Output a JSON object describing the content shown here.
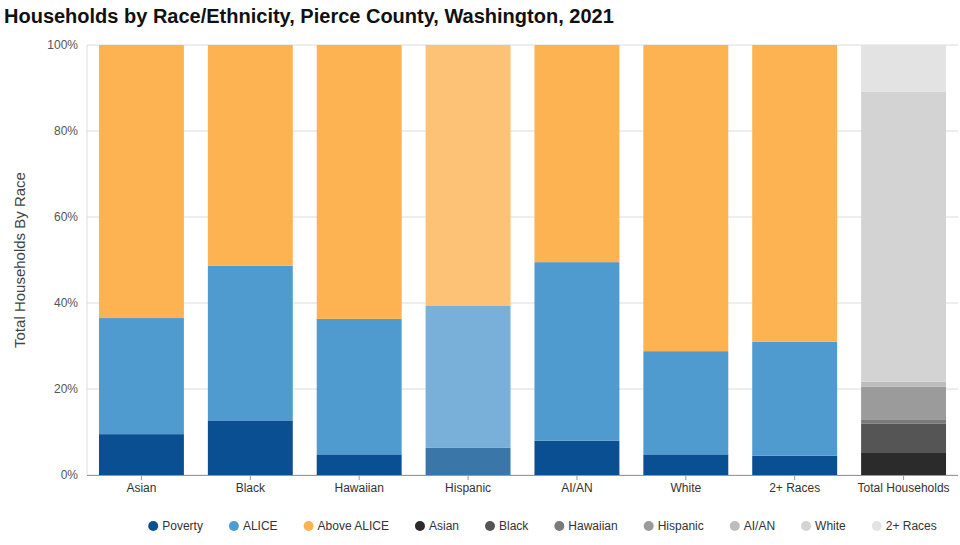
{
  "chart_data": {
    "type": "bar",
    "stacked": true,
    "title": "Households by Race/Ethnicity, Pierce County, Washington, 2021",
    "y_label": "Total Households By Race",
    "categories": [
      "Asian",
      "Black",
      "Hawaiian",
      "Hispanic",
      "AI/AN",
      "White",
      "2+ Races",
      "Total Households"
    ],
    "ylim": [
      0,
      100
    ],
    "yticks": [
      {
        "value": 0,
        "label": "0%"
      },
      {
        "value": 20,
        "label": "20%"
      },
      {
        "value": 40,
        "label": "40%"
      },
      {
        "value": 60,
        "label": "60%"
      },
      {
        "value": 80,
        "label": "80%"
      },
      {
        "value": 100,
        "label": "100%"
      }
    ],
    "grid": true,
    "legend": "bottom",
    "series": [
      {
        "name": "Poverty",
        "color": "#0a4f92",
        "colors": [
          "#0a4f92",
          "#0a4f92",
          "#0a4f92",
          "#3a76a8",
          "#0a4f92",
          "#0a4f92",
          "#0a4f92",
          "#0a4f92"
        ],
        "values": [
          9.5,
          12.7,
          4.8,
          6.3,
          8,
          4.8,
          4.5,
          null
        ]
      },
      {
        "name": "ALICE",
        "color": "#4f9bd0",
        "colors": [
          "#4f9bd0",
          "#4f9bd0",
          "#4f9bd0",
          "#79b0da",
          "#4f9bd0",
          "#4f9bd0",
          "#4f9bd0",
          "#4f9bd0"
        ],
        "values": [
          27,
          36,
          31.5,
          33,
          41.5,
          24,
          26.5,
          null
        ]
      },
      {
        "name": "Above ALICE",
        "color": "#fdb351",
        "colors": [
          "#fdb351",
          "#fdb351",
          "#fdb351",
          "#fec277",
          "#fdb351",
          "#fdb351",
          "#fdb351",
          "#fdb351"
        ],
        "values": [
          63.5,
          51.3,
          63.7,
          60.7,
          50.5,
          71.2,
          69,
          null
        ]
      },
      {
        "name": "Asian",
        "color": "#2b2b2b",
        "values": [
          null,
          null,
          null,
          null,
          null,
          null,
          null,
          5.3
        ]
      },
      {
        "name": "Black",
        "color": "#555555",
        "values": [
          null,
          null,
          null,
          null,
          null,
          null,
          null,
          6.7
        ]
      },
      {
        "name": "Hawaiian",
        "color": "#7a7a7a",
        "values": [
          null,
          null,
          null,
          null,
          null,
          null,
          null,
          0.8
        ]
      },
      {
        "name": "Hispanic",
        "color": "#9b9b9b",
        "values": [
          null,
          null,
          null,
          null,
          null,
          null,
          null,
          7.7
        ]
      },
      {
        "name": "AI/AN",
        "color": "#bdbdbd",
        "values": [
          null,
          null,
          null,
          null,
          null,
          null,
          null,
          1.2
        ]
      },
      {
        "name": "White",
        "color": "#d3d3d3",
        "values": [
          null,
          null,
          null,
          null,
          null,
          null,
          null,
          67.5
        ]
      },
      {
        "name": "2+ Races",
        "color": "#e3e3e3",
        "values": [
          null,
          null,
          null,
          null,
          null,
          null,
          null,
          10.8
        ]
      }
    ]
  }
}
